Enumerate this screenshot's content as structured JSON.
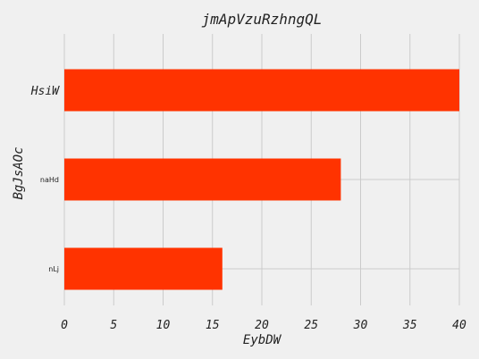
{
  "chart_data": {
    "type": "bar",
    "orientation": "horizontal",
    "title": "jmApVzuRzhngQL",
    "xlabel": "EybDW",
    "ylabel": "BgJsAOc",
    "categories": [
      "HsiW",
      "naHd",
      "nLj"
    ],
    "values": [
      40,
      28,
      16
    ],
    "xlim": [
      0,
      40
    ],
    "xticks": [
      "0",
      "5",
      "10",
      "15",
      "20",
      "25",
      "30",
      "35",
      "40"
    ],
    "grid": true,
    "bar_color": "#ff3300",
    "background": "#f0f0f0"
  }
}
